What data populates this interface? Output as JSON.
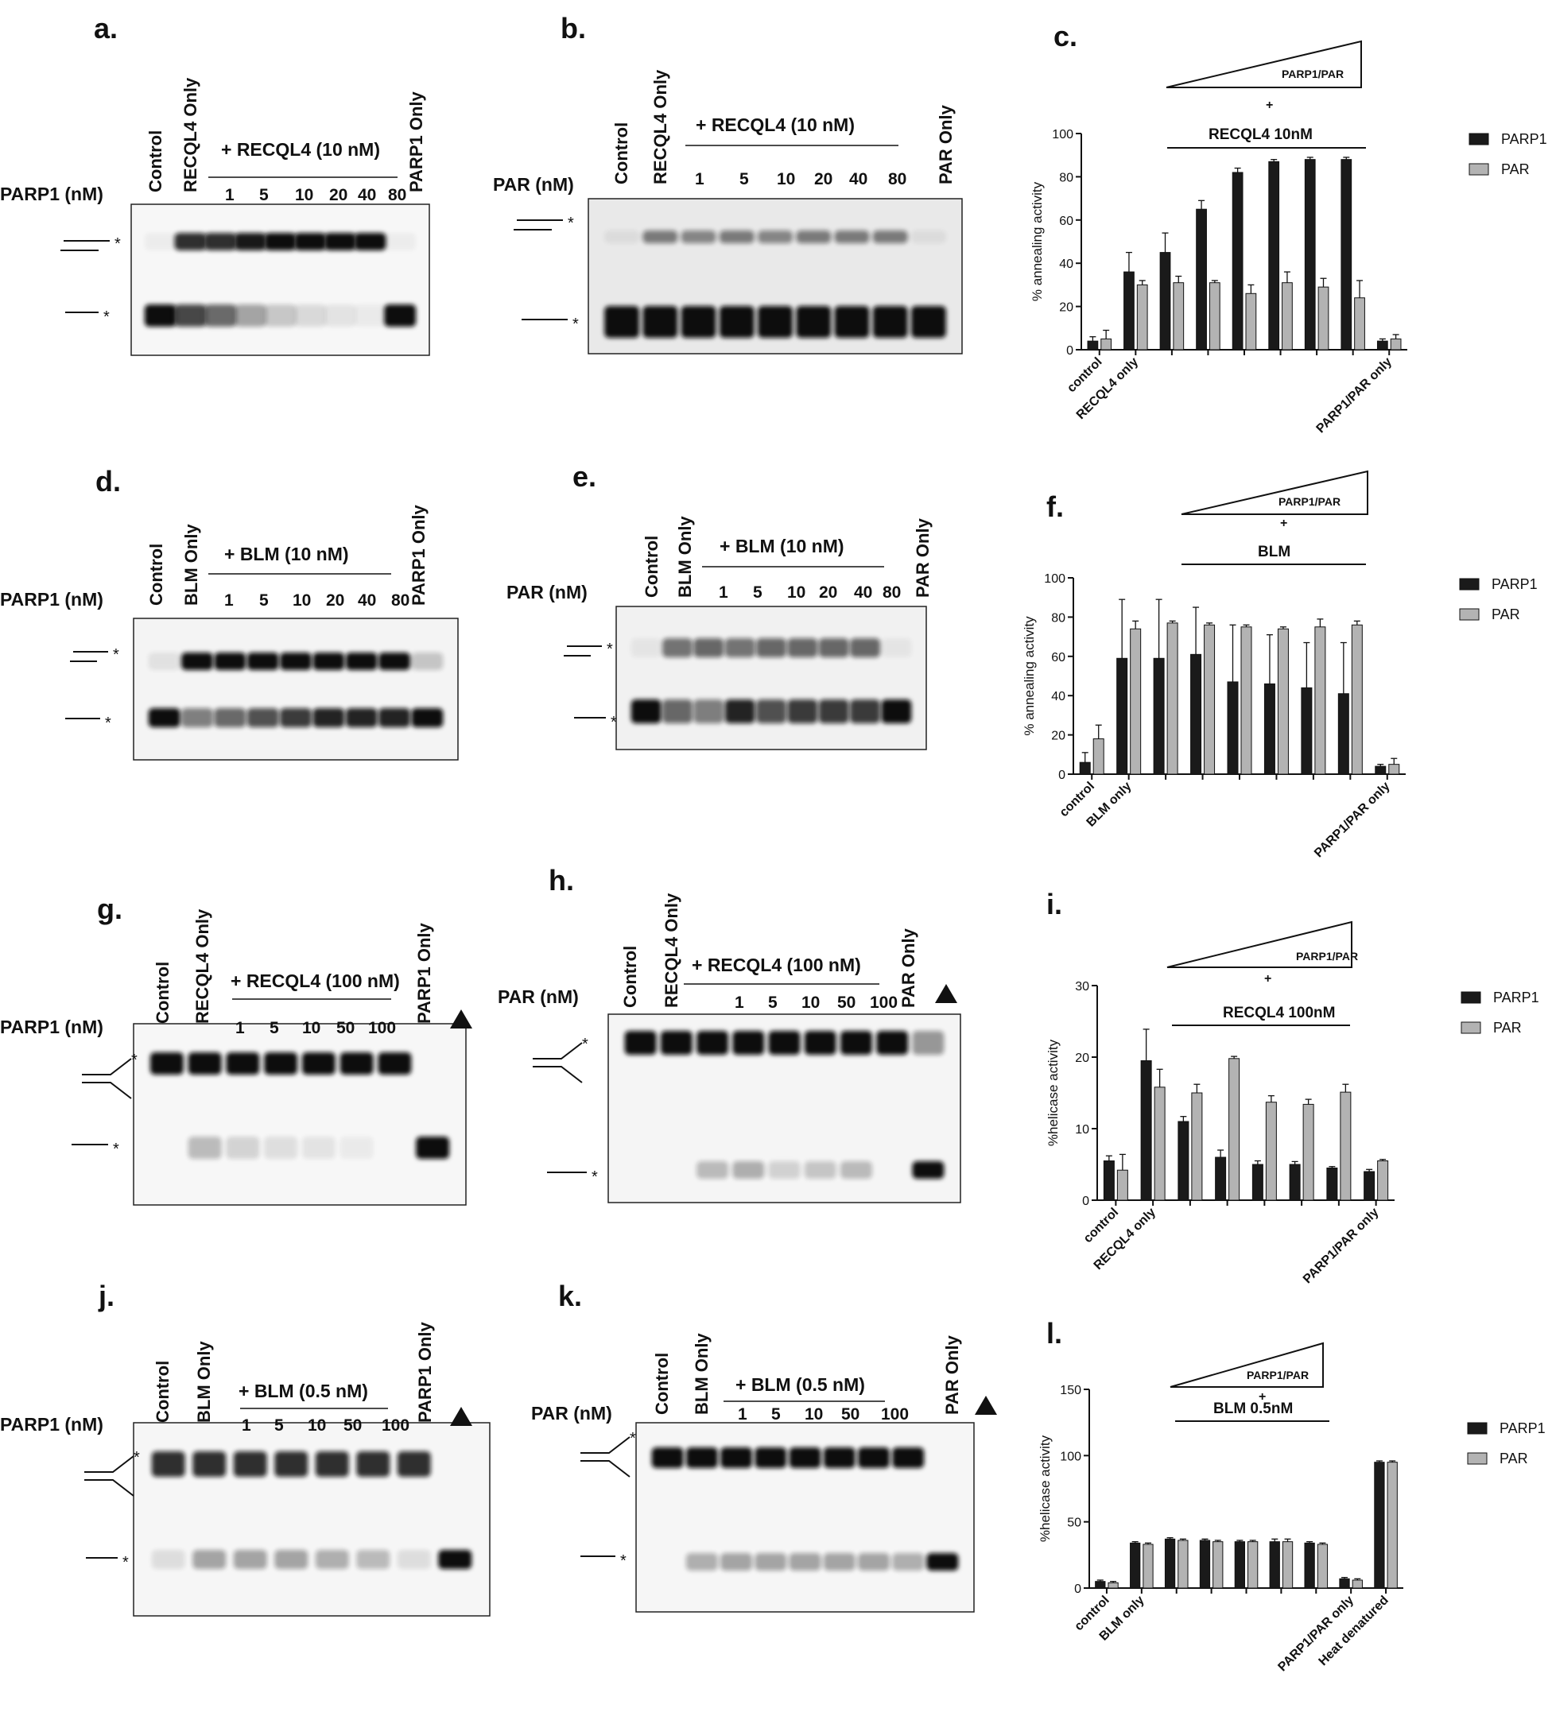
{
  "figure": {
    "panels": [
      {
        "id": "a",
        "label": "a.",
        "type": "gel",
        "lanes": [
          "Control",
          "RECQL4 Only",
          "PARP1 Only"
        ],
        "group_label": "+ RECQL4 (10 nM)",
        "row_label": "PARP1  (nM)",
        "conc": [
          "1",
          "5",
          "10",
          "20",
          "40",
          "80"
        ],
        "triangle": false,
        "top_band": [
          0.04,
          0.85,
          0.85,
          0.95,
          1.0,
          1.0,
          1.0,
          1.0,
          0.04
        ],
        "bottom_band": [
          1.0,
          0.75,
          0.6,
          0.35,
          0.2,
          0.12,
          0.08,
          0.05,
          1.0
        ]
      },
      {
        "id": "b",
        "label": "b.",
        "type": "gel",
        "lanes": [
          "Control",
          "RECQL4 Only",
          "PAR Only"
        ],
        "group_label": "+ RECQL4 (10 nM)",
        "row_label": "PAR  (nM)",
        "conc": [
          "1",
          "5",
          "10",
          "20",
          "40",
          "80"
        ],
        "triangle": false,
        "top_band": [
          0.06,
          0.5,
          0.45,
          0.5,
          0.45,
          0.5,
          0.5,
          0.5,
          0.06
        ],
        "bottom_band": [
          1.0,
          1.0,
          1.0,
          1.0,
          1.0,
          1.0,
          1.0,
          1.0,
          1.0
        ]
      },
      {
        "id": "d",
        "label": "d.",
        "type": "gel",
        "lanes": [
          "Control",
          "BLM Only",
          "PARP1 Only"
        ],
        "group_label": "+ BLM (10 nM)",
        "row_label": "PARP1  (nM)",
        "conc": [
          "1",
          "5",
          "10",
          "20",
          "40",
          "80"
        ],
        "triangle": false,
        "top_band": [
          0.08,
          1.0,
          1.0,
          1.0,
          1.0,
          1.0,
          1.0,
          1.0,
          0.2
        ],
        "bottom_band": [
          1.0,
          0.5,
          0.6,
          0.7,
          0.8,
          0.9,
          0.9,
          0.9,
          1.0
        ]
      },
      {
        "id": "e",
        "label": "e.",
        "type": "gel",
        "lanes": [
          "Control",
          "BLM Only",
          "PAR Only"
        ],
        "group_label": "+ BLM (10 nM)",
        "row_label": "PAR  (nM)",
        "conc": [
          "1",
          "5",
          "10",
          "20",
          "40",
          "80"
        ],
        "triangle": false,
        "top_band": [
          0.05,
          0.55,
          0.6,
          0.55,
          0.6,
          0.6,
          0.6,
          0.6,
          0.05
        ],
        "bottom_band": [
          1.0,
          0.6,
          0.5,
          0.9,
          0.7,
          0.8,
          0.8,
          0.8,
          1.0
        ]
      },
      {
        "id": "g",
        "label": "g.",
        "type": "gel",
        "lanes": [
          "Control",
          "RECQL4 Only",
          "PARP1 Only"
        ],
        "group_label": "+ RECQL4 (100 nM)",
        "row_label": "PARP1  (nM)",
        "conc": [
          "1",
          "5",
          "10",
          "50",
          "100"
        ],
        "triangle": true,
        "top_band": [
          1.0,
          1.0,
          1.0,
          1.0,
          1.0,
          1.0,
          1.0,
          0.0
        ],
        "bottom_band": [
          0.0,
          0.25,
          0.15,
          0.1,
          0.08,
          0.05,
          0.0,
          1.0
        ]
      },
      {
        "id": "h",
        "label": "h.",
        "type": "gel",
        "lanes": [
          "Control",
          "RECQL4 Only",
          "PAR Only"
        ],
        "group_label": "+ RECQL4 (100 nM)",
        "row_label": "PAR  (nM)",
        "conc": [
          "1",
          "5",
          "10",
          "50",
          "100"
        ],
        "triangle": true,
        "top_band": [
          1.0,
          1.0,
          1.0,
          1.0,
          1.0,
          1.0,
          1.0,
          1.0,
          0.4
        ],
        "bottom_band": [
          0.0,
          0.0,
          0.25,
          0.3,
          0.15,
          0.2,
          0.25,
          0.0,
          1.0
        ]
      },
      {
        "id": "j",
        "label": "j.",
        "type": "gel",
        "lanes": [
          "Control",
          "BLM Only",
          "PARP1 Only"
        ],
        "group_label": "+ BLM (0.5 nM)",
        "row_label": "PARP1 (nM)",
        "conc": [
          "1",
          "5",
          "10",
          "50",
          "100"
        ],
        "triangle": true,
        "top_band": [
          0.85,
          0.85,
          0.85,
          0.85,
          0.85,
          0.85,
          0.85,
          0.0
        ],
        "bottom_band": [
          0.1,
          0.35,
          0.35,
          0.35,
          0.3,
          0.25,
          0.1,
          1.0
        ]
      },
      {
        "id": "k",
        "label": "k.",
        "type": "gel",
        "lanes": [
          "Control",
          "BLM Only",
          "PAR Only"
        ],
        "group_label": "+ BLM (0.5 nM)",
        "row_label": "PAR (nM)",
        "conc": [
          "1",
          "5",
          "10",
          "50",
          "100"
        ],
        "triangle": true,
        "top_band": [
          1.0,
          1.0,
          1.0,
          1.0,
          1.0,
          1.0,
          1.0,
          1.0,
          0.0
        ],
        "bottom_band": [
          0.0,
          0.3,
          0.35,
          0.35,
          0.35,
          0.35,
          0.35,
          0.3,
          1.0
        ]
      }
    ]
  },
  "chart_data": [
    {
      "id": "c",
      "label": "c.",
      "type": "bar",
      "ylabel": "% annealing activity",
      "ylim": [
        0,
        100
      ],
      "yticks": [
        0,
        20,
        40,
        60,
        80,
        100
      ],
      "triangle_label": "PARP1/PAR",
      "plus": "+",
      "bracket_label": "RECQL4 10nM",
      "categories": [
        "control",
        "RECQL4 only",
        "",
        "",
        "",
        "",
        "",
        "",
        "PARP1/PAR only"
      ],
      "series": [
        {
          "name": "PARP1",
          "color": "#1a1a1a",
          "values": [
            4,
            36,
            45,
            65,
            82,
            87,
            88,
            88,
            4
          ],
          "errors": [
            2,
            9,
            9,
            4,
            2,
            1,
            1,
            1,
            1
          ]
        },
        {
          "name": "PAR",
          "color": "#b3b3b3",
          "values": [
            5,
            30,
            31,
            31,
            26,
            31,
            29,
            24,
            5
          ],
          "errors": [
            4,
            2,
            3,
            1,
            4,
            5,
            4,
            8,
            2
          ]
        }
      ]
    },
    {
      "id": "f",
      "label": "f.",
      "type": "bar",
      "ylabel": "% annealing activity",
      "ylim": [
        0,
        100
      ],
      "yticks": [
        0,
        20,
        40,
        60,
        80,
        100
      ],
      "triangle_label": "PARP1/PAR",
      "plus": "+",
      "bracket_label": "BLM",
      "categories": [
        "control",
        "BLM only",
        "",
        "",
        "",
        "",
        "",
        "",
        "PARP1/PAR only"
      ],
      "series": [
        {
          "name": "PARP1",
          "color": "#1a1a1a",
          "values": [
            6,
            59,
            59,
            61,
            47,
            46,
            44,
            41,
            4
          ],
          "errors": [
            5,
            30,
            30,
            24,
            29,
            25,
            23,
            26,
            1
          ]
        },
        {
          "name": "PAR",
          "color": "#b3b3b3",
          "values": [
            18,
            74,
            77,
            76,
            75,
            74,
            75,
            76,
            5
          ],
          "errors": [
            7,
            4,
            1,
            1,
            1,
            1,
            4,
            2,
            3
          ]
        }
      ]
    },
    {
      "id": "i",
      "label": "i.",
      "type": "bar",
      "ylabel": "%helicase activity",
      "ylim": [
        0,
        30
      ],
      "yticks": [
        0,
        10,
        20,
        30
      ],
      "triangle_label": "PARP1/PAR",
      "plus": "+",
      "bracket_label": "RECQL4 100nM",
      "categories": [
        "control",
        "RECQL4 only",
        "",
        "",
        "",
        "",
        "",
        "PARP1/PAR only"
      ],
      "series": [
        {
          "name": "PARP1",
          "color": "#1a1a1a",
          "values": [
            5.5,
            19.5,
            11,
            6,
            5,
            5,
            4.5,
            4
          ],
          "errors": [
            0.7,
            4.4,
            0.7,
            1,
            0.5,
            0.4,
            0.2,
            0.3
          ]
        },
        {
          "name": "PAR",
          "color": "#b3b3b3",
          "values": [
            4.2,
            15.8,
            15,
            19.8,
            13.7,
            13.4,
            15.1,
            5.5
          ],
          "errors": [
            2.2,
            2.5,
            1.2,
            0.3,
            0.9,
            0.7,
            1.1,
            0.2
          ]
        }
      ]
    },
    {
      "id": "l",
      "label": "l.",
      "type": "bar",
      "ylabel": "%helicase activity",
      "ylim": [
        0,
        150
      ],
      "yticks": [
        0,
        50,
        100,
        150
      ],
      "triangle_label": "PARP1/PAR",
      "plus": "+",
      "bracket_label": "BLM 0.5nM",
      "categories": [
        "control",
        "BLM only",
        "",
        "",
        "",
        "",
        "",
        "PARP1/PAR only",
        "Heat denatured"
      ],
      "series": [
        {
          "name": "PARP1",
          "color": "#1a1a1a",
          "values": [
            5,
            34,
            37,
            36,
            35,
            35,
            34,
            7,
            95
          ],
          "errors": [
            1,
            1,
            1,
            1,
            1,
            2,
            1,
            1,
            1
          ]
        },
        {
          "name": "PAR",
          "color": "#b3b3b3",
          "values": [
            4,
            33,
            36,
            35,
            35,
            35,
            33,
            6,
            95
          ],
          "errors": [
            1,
            1,
            1,
            1,
            1,
            2,
            1,
            1,
            1
          ]
        }
      ]
    }
  ]
}
